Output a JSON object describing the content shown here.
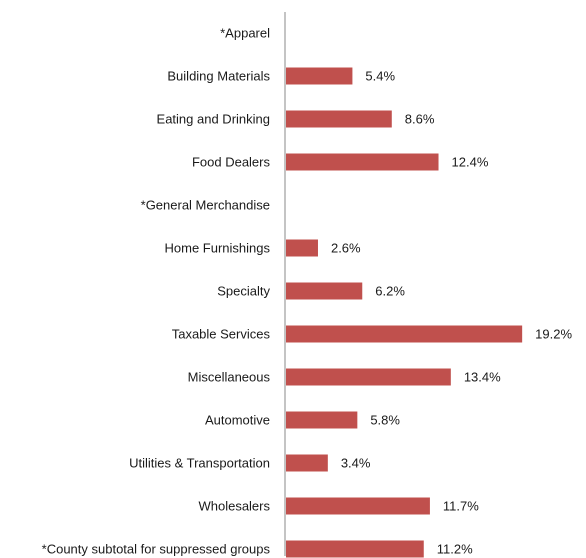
{
  "chart_data": {
    "type": "bar",
    "orientation": "horizontal",
    "categories": [
      "*Apparel",
      "Building Materials",
      "Eating and Drinking",
      "Food Dealers",
      "*General Merchandise",
      "Home Furnishings",
      "Specialty",
      "Taxable Services",
      "Miscellaneous",
      "Automotive",
      "Utilities & Transportation",
      "Wholesalers",
      "*County subtotal for suppressed groups"
    ],
    "values": [
      null,
      5.4,
      8.6,
      12.4,
      null,
      2.6,
      6.2,
      19.2,
      13.4,
      5.8,
      3.4,
      11.7,
      11.2
    ],
    "value_labels": [
      "",
      "5.4%",
      "8.6%",
      "12.4%",
      "",
      "2.6%",
      "6.2%",
      "19.2%",
      "13.4%",
      "5.8%",
      "3.4%",
      "11.7%",
      "11.2%"
    ],
    "title": "",
    "xlabel": "",
    "ylabel": "",
    "xlim": [
      0,
      20
    ],
    "grid": false,
    "legend": "none",
    "bar_color": "#c0504d",
    "axis_color": "#888888"
  }
}
